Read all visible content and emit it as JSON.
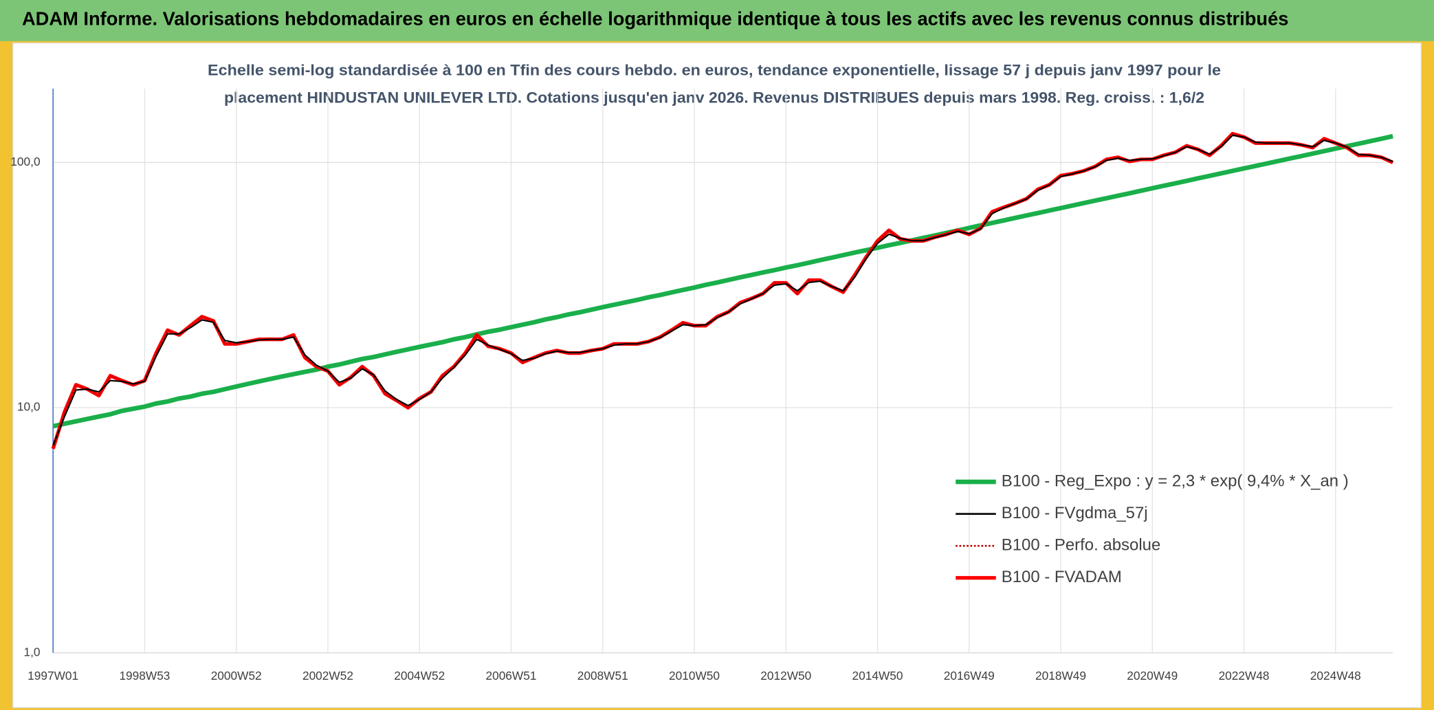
{
  "heading": "ADAM Informe. Valorisations hebdomadaires en euros en échelle logarithmique identique à tous les actifs avec les revenus connus distribués",
  "chart_data": {
    "type": "line",
    "title": [
      "Echelle semi-log standardisée à 100 en Tfin des cours hebdo. en euros, tendance exponentielle, lissage 57 j depuis janv 1997 pour le",
      "placement HINDUSTAN UNILEVER LTD. Cotations jusqu'en janv 2026. Revenus DISTRIBUES depuis mars 1998. Reg. croiss. : 1,6/2"
    ],
    "categories": [
      "1997W01",
      null,
      null,
      null,
      null,
      null,
      null,
      null,
      "1998W53",
      null,
      null,
      null,
      null,
      null,
      null,
      null,
      "2000W52",
      null,
      null,
      null,
      null,
      null,
      null,
      null,
      "2002W52",
      null,
      null,
      null,
      null,
      null,
      null,
      null,
      "2004W52",
      null,
      null,
      null,
      null,
      null,
      null,
      null,
      "2006W51",
      null,
      null,
      null,
      null,
      null,
      null,
      null,
      "2008W51",
      null,
      null,
      null,
      null,
      null,
      null,
      null,
      "2010W50",
      null,
      null,
      null,
      null,
      null,
      null,
      null,
      "2012W50",
      null,
      null,
      null,
      null,
      null,
      null,
      null,
      "2014W50",
      null,
      null,
      null,
      null,
      null,
      null,
      null,
      "2016W49",
      null,
      null,
      null,
      null,
      null,
      null,
      null,
      "2018W49",
      null,
      null,
      null,
      null,
      null,
      null,
      null,
      "2020W49",
      null,
      null,
      null,
      null,
      null,
      null,
      null,
      "2022W48",
      null,
      null,
      null,
      null,
      null,
      null,
      null,
      "2024W48",
      null,
      null,
      null,
      null,
      null
    ],
    "series": [
      {
        "name": "B100 - Reg_Expo : y = 2,3 * exp( 9,4% *  X_an )",
        "color": "#1aaf4b",
        "style": "solid",
        "width": 5,
        "values": [
          8.4,
          8.6,
          8.8,
          9.0,
          9.2,
          9.4,
          9.7,
          9.9,
          10.1,
          10.4,
          10.6,
          10.9,
          11.1,
          11.4,
          11.6,
          11.9,
          12.2,
          12.5,
          12.8,
          13.1,
          13.4,
          13.7,
          14.0,
          14.3,
          14.7,
          15.0,
          15.4,
          15.8,
          16.1,
          16.5,
          16.9,
          17.3,
          17.7,
          18.1,
          18.5,
          19.0,
          19.4,
          19.9,
          20.4,
          20.8,
          21.3,
          21.8,
          22.3,
          22.9,
          23.4,
          24.0,
          24.5,
          25.1,
          25.7,
          26.3,
          26.9,
          27.5,
          28.2,
          28.8,
          29.5,
          30.2,
          30.9,
          31.7,
          32.4,
          33.2,
          34.0,
          34.8,
          35.6,
          36.4,
          37.3,
          38.1,
          39.0,
          40.0,
          40.9,
          41.9,
          42.9,
          43.9,
          44.9,
          46.0,
          47.0,
          48.1,
          49.3,
          50.4,
          51.6,
          52.8,
          54.1,
          55.4,
          56.7,
          58.0,
          59.4,
          60.8,
          62.2,
          63.7,
          65.2,
          66.7,
          68.3,
          69.9,
          71.5,
          73.2,
          74.9,
          76.7,
          78.5,
          80.4,
          82.2,
          84.2,
          86.2,
          88.2,
          90.3,
          92.4,
          94.6,
          96.8,
          99.1,
          101.4,
          103.8,
          106.2,
          108.7,
          111.3,
          113.9,
          116.6,
          119.3,
          122.1,
          125.0,
          128.0
        ]
      },
      {
        "name": "B100 - FVgdma_57j",
        "color": "#000000",
        "style": "solid",
        "width": 1.6,
        "values": [
          7.0,
          9.2,
          11.8,
          11.9,
          11.6,
          12.9,
          12.8,
          12.5,
          12.8,
          16.2,
          20.0,
          20.0,
          21.2,
          22.8,
          22.3,
          18.8,
          18.4,
          18.6,
          18.9,
          19.0,
          19.0,
          19.4,
          16.4,
          14.9,
          14.1,
          12.7,
          13.2,
          14.4,
          13.6,
          11.7,
          10.8,
          10.2,
          10.8,
          11.6,
          13.2,
          14.6,
          16.4,
          19.0,
          18.0,
          17.3,
          16.6,
          15.6,
          15.9,
          16.6,
          17.0,
          16.8,
          16.8,
          17.1,
          17.4,
          18.0,
          18.2,
          18.2,
          18.6,
          19.3,
          20.5,
          21.8,
          21.6,
          21.8,
          23.3,
          24.6,
          26.5,
          27.8,
          29.2,
          31.6,
          32.0,
          30.0,
          32.4,
          32.8,
          31.2,
          30.0,
          34.0,
          40.5,
          46.8,
          51.0,
          49.0,
          48.0,
          48.0,
          49.4,
          50.8,
          52.4,
          51.2,
          53.6,
          61.8,
          65.2,
          68.0,
          71.0,
          77.0,
          81.0,
          87.6,
          89.8,
          92.4,
          96.0,
          102.0,
          104.0,
          102.0,
          103.0,
          103.5,
          106.5,
          110.0,
          116.0,
          113.0,
          108.0,
          116.0,
          129.0,
          127.0,
          121.0,
          120.0,
          120.0,
          120.0,
          118.0,
          116.0,
          123.0,
          120.0,
          115.5,
          108.0,
          107.0,
          105.0,
          101.0
        ]
      },
      {
        "name": "B100 - Perfo. absolue",
        "color": "#c00000",
        "style": "dotted",
        "width": 1.4,
        "values": [
          6.8,
          9.6,
          12.4,
          11.9,
          11.2,
          13.5,
          12.9,
          12.4,
          12.9,
          16.7,
          20.7,
          19.8,
          21.6,
          23.5,
          22.6,
          18.2,
          18.2,
          18.6,
          19.0,
          19.0,
          19.0,
          19.8,
          16.0,
          14.7,
          14.1,
          12.4,
          13.3,
          14.7,
          13.5,
          11.4,
          10.7,
          10.0,
          10.9,
          11.6,
          13.5,
          14.7,
          16.7,
          19.8,
          17.8,
          17.4,
          16.7,
          15.3,
          16.0,
          16.7,
          17.1,
          16.7,
          16.7,
          17.1,
          17.4,
          18.2,
          18.2,
          18.2,
          18.6,
          19.4,
          20.7,
          22.2,
          21.6,
          21.6,
          23.5,
          24.6,
          26.8,
          27.9,
          29.2,
          32.3,
          32.3,
          29.2,
          33.1,
          33.1,
          31.2,
          29.6,
          34.7,
          41.1,
          47.9,
          52.9,
          48.8,
          47.9,
          47.9,
          49.6,
          50.9,
          52.9,
          50.9,
          53.9,
          62.9,
          65.6,
          68.1,
          71.1,
          77.7,
          81.1,
          88.4,
          90.0,
          92.4,
          96.3,
          103,
          105,
          101,
          103,
          103,
          107,
          110,
          117,
          113,
          107,
          117,
          131,
          127,
          120,
          120,
          120,
          120,
          118,
          115,
          125,
          120,
          115,
          107,
          107,
          105,
          100
        ]
      },
      {
        "name": "B100 - FVADAM",
        "color": "#ff0000",
        "style": "solid",
        "width": 4,
        "values": [
          6.8,
          9.6,
          12.4,
          11.9,
          11.2,
          13.5,
          12.9,
          12.4,
          12.9,
          16.7,
          20.7,
          19.8,
          21.6,
          23.5,
          22.6,
          18.2,
          18.2,
          18.6,
          19.0,
          19.0,
          19.0,
          19.8,
          16.0,
          14.7,
          14.1,
          12.4,
          13.3,
          14.7,
          13.5,
          11.4,
          10.7,
          10.0,
          10.9,
          11.6,
          13.5,
          14.7,
          16.7,
          19.8,
          17.8,
          17.4,
          16.7,
          15.3,
          16.0,
          16.7,
          17.1,
          16.7,
          16.7,
          17.1,
          17.4,
          18.2,
          18.2,
          18.2,
          18.6,
          19.4,
          20.7,
          22.2,
          21.6,
          21.6,
          23.5,
          24.6,
          26.8,
          27.9,
          29.2,
          32.3,
          32.3,
          29.2,
          33.1,
          33.1,
          31.2,
          29.6,
          34.7,
          41.1,
          47.9,
          52.9,
          48.8,
          47.9,
          47.9,
          49.6,
          50.9,
          52.9,
          50.9,
          53.9,
          62.9,
          65.6,
          68.1,
          71.1,
          77.7,
          81.1,
          88.4,
          90.0,
          92.4,
          96.3,
          103,
          105,
          101,
          103,
          103,
          107,
          110,
          117,
          113,
          107,
          117,
          131,
          127,
          120,
          120,
          120,
          120,
          118,
          115,
          125,
          120,
          115,
          107,
          107,
          105,
          100
        ]
      }
    ],
    "ylim": [
      1,
      200
    ],
    "log_y": true,
    "yticks": [
      {
        "value": 1,
        "label": "1,0"
      },
      {
        "value": 10,
        "label": "10,0"
      },
      {
        "value": 100,
        "label": "100,0"
      }
    ],
    "grid": true,
    "legend": "lower right"
  }
}
